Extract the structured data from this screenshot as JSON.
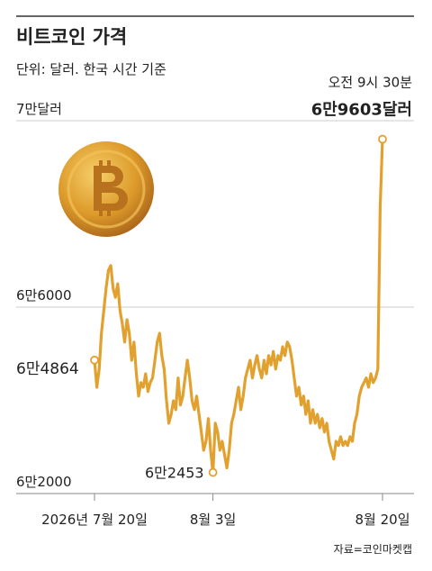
{
  "chart_data": {
    "type": "line",
    "title": "비트코인 가격",
    "subtitle": "단위: 달러. 한국 시간 기준",
    "source": "자료=코인마켓캡",
    "annotation": "오전 9시 30분",
    "color": "#e2a12f",
    "grid": true,
    "ylim": [
      62000,
      70000
    ],
    "yticks": [
      {
        "value": 62000,
        "label": "6만2000"
      },
      {
        "value": 66000,
        "label": "6만6000"
      },
      {
        "value": 70000,
        "label": "7만달러"
      }
    ],
    "categories": [
      "2026년 7월 20일",
      null,
      null,
      null,
      null,
      null,
      null,
      null,
      null,
      null,
      null,
      null,
      null,
      null,
      null,
      null,
      null,
      null,
      null,
      null,
      null,
      null,
      null,
      null,
      null,
      null,
      null,
      null,
      null,
      null,
      null,
      null,
      null,
      null,
      null,
      null,
      null,
      null,
      null,
      null,
      null,
      null,
      null,
      null,
      null,
      null,
      null,
      null,
      null,
      null,
      null,
      "8월 3일",
      null,
      null,
      null,
      null,
      null,
      null,
      null,
      null,
      null,
      null,
      null,
      null,
      null,
      null,
      null,
      null,
      null,
      null,
      null,
      null,
      null,
      null,
      null,
      null,
      null,
      null,
      null,
      null,
      null,
      null,
      null,
      null,
      null,
      null,
      null,
      null,
      null,
      null,
      null,
      null,
      null,
      null,
      null,
      null,
      null,
      null,
      null,
      null,
      null,
      null,
      null,
      null,
      null,
      null,
      null,
      null,
      null,
      null,
      null,
      null,
      null,
      null,
      null,
      null,
      null,
      null,
      null,
      null,
      null,
      null,
      null,
      null,
      "8월 20일"
    ],
    "values": [
      64864,
      64280,
      64670,
      65440,
      65920,
      66410,
      66790,
      66890,
      66410,
      66210,
      66500,
      65920,
      65630,
      65250,
      65730,
      65440,
      64860,
      65250,
      64570,
      64090,
      64380,
      64280,
      64570,
      64190,
      64380,
      64480,
      64860,
      65250,
      65440,
      64960,
      64670,
      63990,
      63510,
      63700,
      63990,
      63800,
      64480,
      63900,
      64090,
      64480,
      64860,
      64480,
      63990,
      63800,
      64090,
      63700,
      63320,
      62930,
      63120,
      63610,
      62930,
      62453,
      63510,
      63320,
      62930,
      63120,
      62830,
      62550,
      62930,
      63510,
      63700,
      63990,
      64280,
      63800,
      64090,
      64480,
      64670,
      64860,
      64480,
      64760,
      64960,
      64670,
      64480,
      64860,
      64570,
      64960,
      64760,
      65050,
      64670,
      64960,
      64860,
      65150,
      64960,
      65250,
      65150,
      64860,
      64480,
      64090,
      64280,
      63900,
      64090,
      63700,
      63990,
      63510,
      63800,
      63510,
      63700,
      63410,
      63610,
      63320,
      63510,
      63120,
      62930,
      62740,
      63120,
      63030,
      63220,
      63030,
      63120,
      63030,
      63220,
      63120,
      63510,
      63700,
      64090,
      64280,
      64380,
      64480,
      64280,
      64570,
      64380,
      64480,
      64670,
      68140,
      69603
    ],
    "value_labels": [
      "6만4864",
      null,
      null,
      null,
      null,
      null,
      null,
      null,
      null,
      null,
      null,
      null,
      null,
      null,
      null,
      null,
      null,
      null,
      null,
      null,
      null,
      null,
      null,
      null,
      null,
      null,
      null,
      null,
      null,
      null,
      null,
      null,
      null,
      null,
      null,
      null,
      null,
      null,
      null,
      null,
      null,
      null,
      null,
      null,
      null,
      null,
      null,
      null,
      null,
      null,
      null,
      "6만2453",
      null,
      null,
      null,
      null,
      null,
      null,
      null,
      null,
      null,
      null,
      null,
      null,
      null,
      null,
      null,
      null,
      null,
      null,
      null,
      null,
      null,
      null,
      null,
      null,
      null,
      null,
      null,
      null,
      null,
      null,
      null,
      null,
      null,
      null,
      null,
      null,
      null,
      null,
      null,
      null,
      null,
      null,
      null,
      null,
      null,
      null,
      null,
      null,
      null,
      null,
      null,
      null,
      null,
      null,
      null,
      null,
      null,
      null,
      null,
      null,
      null,
      null,
      null,
      null,
      null,
      null,
      null,
      null,
      null,
      null,
      null,
      null,
      "6만9603달러"
    ]
  }
}
